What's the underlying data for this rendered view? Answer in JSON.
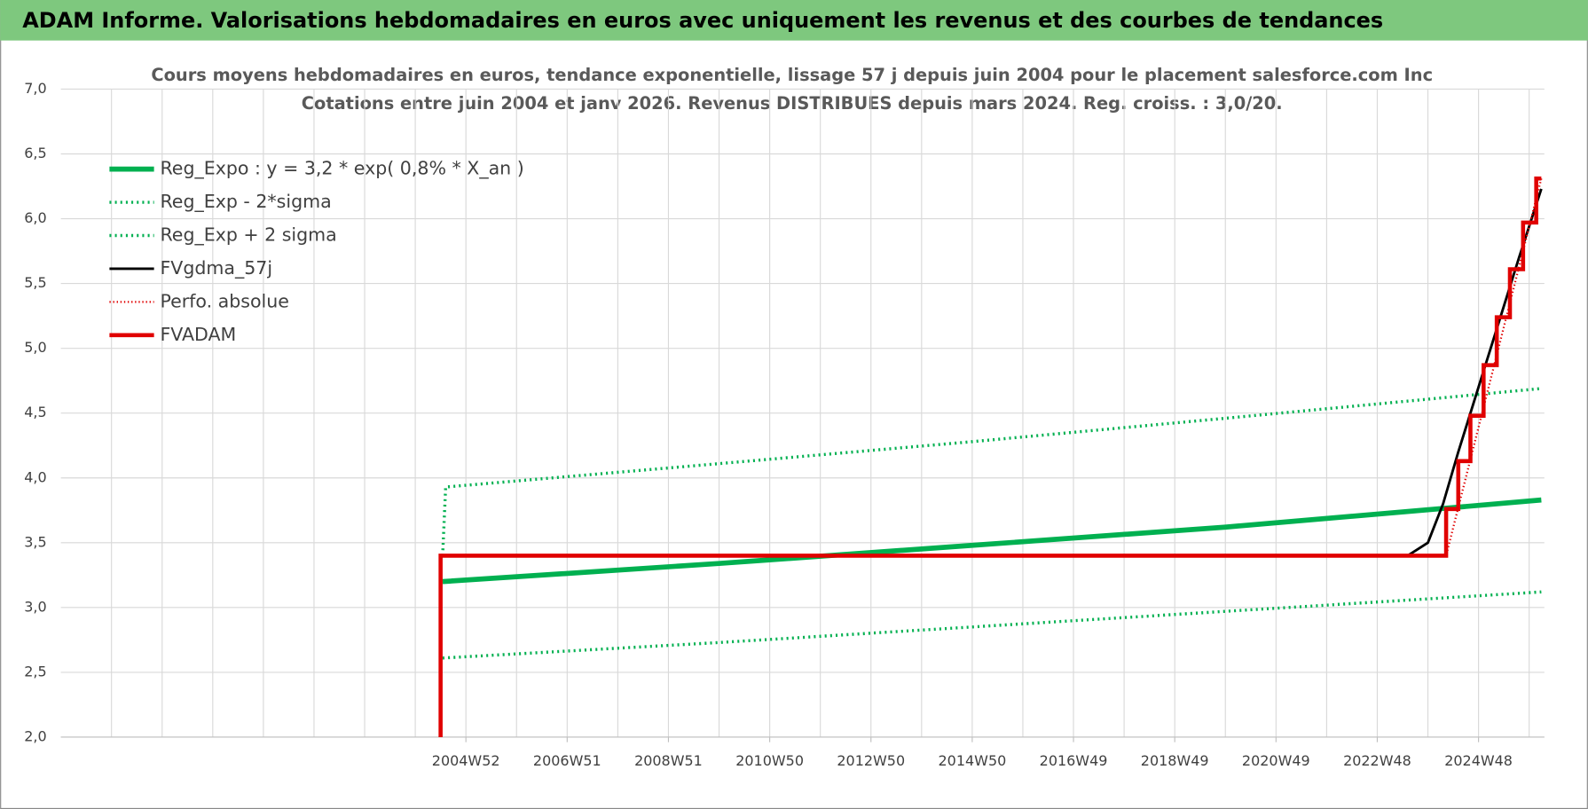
{
  "header": "ADAM Informe. Valorisations hebdomadaires en euros avec uniquement les revenus et des courbes de tendances",
  "chart_data": {
    "type": "line",
    "title": "Cours moyens hebdomadaires en euros, tendance exponentielle, lissage 57 j depuis juin 2004 pour le placement salesforce.com Inc",
    "subtitle": "Cotations entre juin 2004 et janv 2026. Revenus DISTRIBUES depuis mars 2024. Reg. croiss. : 3,0/20.",
    "xlim": [
      1997,
      2026.3
    ],
    "xticks": [
      {
        "value": 2005,
        "label": "2004W52"
      },
      {
        "value": 2007,
        "label": "2006W51"
      },
      {
        "value": 2009,
        "label": "2008W51"
      },
      {
        "value": 2011,
        "label": "2010W50"
      },
      {
        "value": 2013,
        "label": "2012W50"
      },
      {
        "value": 2015,
        "label": "2014W50"
      },
      {
        "value": 2017,
        "label": "2016W49"
      },
      {
        "value": 2019,
        "label": "2018W49"
      },
      {
        "value": 2021,
        "label": "2020W49"
      },
      {
        "value": 2023,
        "label": "2022W48"
      },
      {
        "value": 2025,
        "label": "2024W48"
      }
    ],
    "ylim": [
      2,
      7
    ],
    "yticks": [
      {
        "value": 2,
        "label": "2,0"
      },
      {
        "value": 2.5,
        "label": "2,5"
      },
      {
        "value": 3,
        "label": "3,0"
      },
      {
        "value": 3.5,
        "label": "3,5"
      },
      {
        "value": 4,
        "label": "4,0"
      },
      {
        "value": 4.5,
        "label": "4,5"
      },
      {
        "value": 5,
        "label": "5,0"
      },
      {
        "value": 5.5,
        "label": "5,5"
      },
      {
        "value": 6,
        "label": "6,0"
      },
      {
        "value": 6.5,
        "label": "6,5"
      },
      {
        "value": 7,
        "label": "7,0"
      }
    ],
    "grid": true,
    "legend": "upper left",
    "series": [
      {
        "name": "Reg_Expo : y = 3,2 * exp( 0,8% *  X_an )",
        "color": "#00b050",
        "style": "solid",
        "line_width": 5,
        "x": [
          2004.54,
          2010,
          2015,
          2020,
          2026.24
        ],
        "values": [
          3.2,
          3.34,
          3.48,
          3.62,
          3.83
        ]
      },
      {
        "name": "Reg_Exp - 2*sigma",
        "color": "#00b050",
        "style": "dotted",
        "line_width": 3,
        "x": [
          2004.54,
          2010,
          2015,
          2020,
          2026.24
        ],
        "values": [
          2.61,
          2.73,
          2.85,
          2.97,
          3.12
        ]
      },
      {
        "name": "Reg_Exp + 2 sigma",
        "color": "#00b050",
        "style": "dotted",
        "line_width": 3,
        "x": [
          2004.54,
          2004.6,
          2010,
          2015,
          2020,
          2026.24
        ],
        "values": [
          3.4,
          3.93,
          4.11,
          4.28,
          4.46,
          4.69
        ]
      },
      {
        "name": "FVgdma_57j",
        "color": "#000000",
        "style": "solid",
        "line_width": 2.5,
        "x": [
          2004.54,
          2023.6,
          2024.0,
          2024.3,
          2024.6,
          2025.0,
          2025.4,
          2025.8,
          2026.24
        ],
        "values": [
          3.4,
          3.4,
          3.5,
          3.8,
          4.2,
          4.7,
          5.2,
          5.7,
          6.23
        ]
      },
      {
        "name": "Perfo. absolue",
        "color": "#e00000",
        "style": "dotted",
        "line_width": 2,
        "x": [
          2004.5,
          2004.5,
          2024.36,
          2026.24
        ],
        "values": [
          2,
          3.4,
          3.4,
          6.31
        ]
      },
      {
        "name": "FVADAM",
        "color": "#e00000",
        "style": "solid",
        "line_width": 4,
        "x": [
          2004.5,
          2004.5,
          2024.36,
          2024.36,
          2024.6,
          2024.6,
          2024.84,
          2024.84,
          2025.1,
          2025.1,
          2025.36,
          2025.36,
          2025.62,
          2025.62,
          2025.88,
          2025.88,
          2026.14,
          2026.14,
          2026.24
        ],
        "values": [
          2,
          3.4,
          3.4,
          3.76,
          3.76,
          4.13,
          4.13,
          4.48,
          4.48,
          4.87,
          4.87,
          5.24,
          5.24,
          5.61,
          5.61,
          5.97,
          5.97,
          6.31,
          6.31
        ]
      }
    ]
  }
}
